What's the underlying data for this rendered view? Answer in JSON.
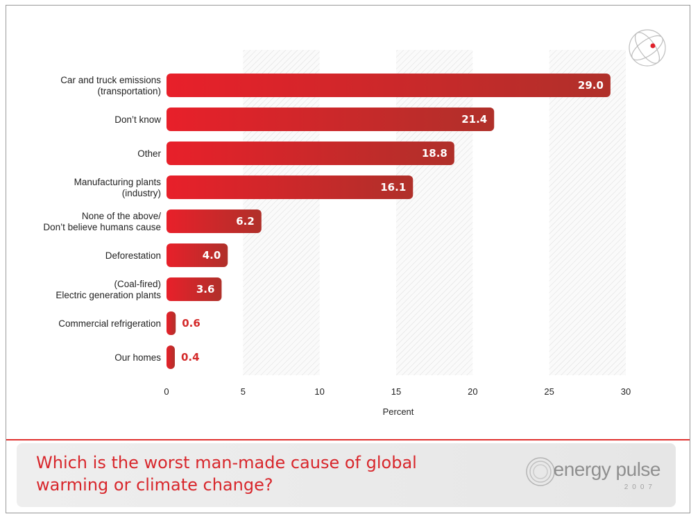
{
  "chart_data": {
    "type": "bar",
    "orientation": "horizontal",
    "categories": [
      "Car and truck emissions\n(transportation)",
      "Don’t know",
      "Other",
      "Manufacturing plants\n(industry)",
      "None of the above/\nDon’t believe humans cause",
      "Deforestation",
      "(Coal-fired)\nElectric generation plants",
      "Commercial refrigeration",
      "Our homes"
    ],
    "values": [
      29.0,
      21.4,
      18.8,
      16.1,
      6.2,
      4.0,
      3.6,
      0.6,
      0.4
    ],
    "value_labels": [
      "29.0",
      "21.4",
      "18.8",
      "16.1",
      "6.2",
      "4.0",
      "3.6",
      "0.6",
      "0.4"
    ],
    "xlabel": "Percent",
    "ylabel": "",
    "xlim": [
      0,
      30
    ],
    "x_ticks": [
      "0",
      "5",
      "10",
      "15",
      "20",
      "25",
      "30"
    ],
    "grid": "alternating hatched vertical bands",
    "legend": "none",
    "bar_color_start": "#e8202a",
    "bar_color_end": "#b0302a",
    "value_label_color": "#d42b2b"
  },
  "footer": {
    "question": "Which is the worst man-made cause of global warming or climate change?",
    "brand_name": "energy pulse",
    "brand_year": "2007"
  },
  "colors": {
    "accent": "#d8262b",
    "rule": "#e0312f",
    "footer_bg": "#eeeeee",
    "brand_gray": "#8f8f8f"
  },
  "icons": {
    "corner_logo": "atom-orbit-icon",
    "brand_logo": "concentric-circles-icon"
  }
}
